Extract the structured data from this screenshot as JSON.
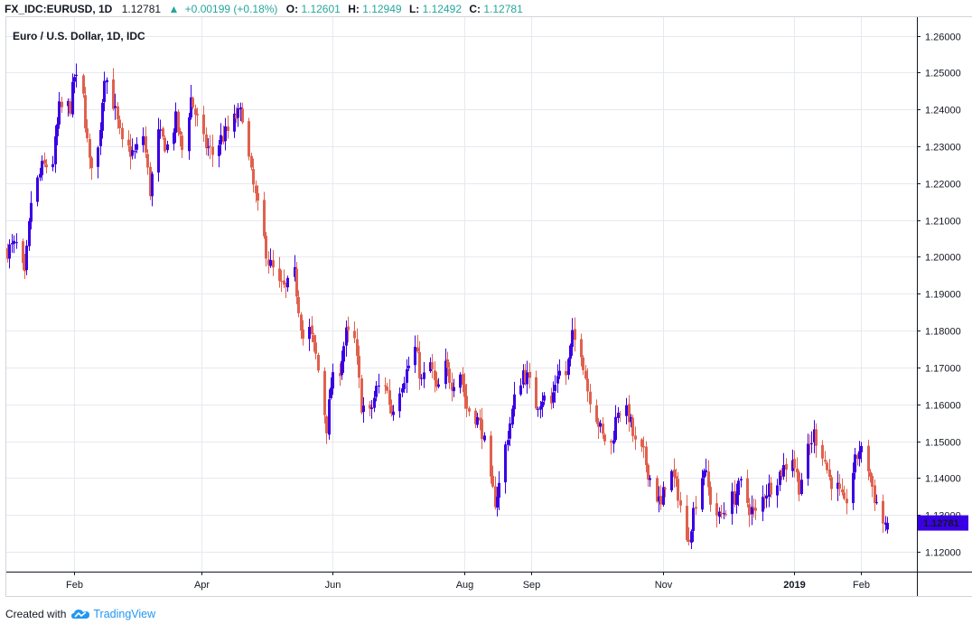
{
  "header": {
    "symbol": "FX_IDC:EURUSD, 1D",
    "last": "1.12781",
    "arrow": "▲",
    "change": "+0.00199 (+0.18%)",
    "o_label": "O:",
    "o": "1.12601",
    "h_label": "H:",
    "h": "1.12949",
    "l_label": "L:",
    "l": "1.12492",
    "c_label": "C:",
    "c": "1.12781"
  },
  "footer": {
    "created_with": "Created with",
    "brand": "TradingView",
    "brand_icon": "tradingview-cloud-icon"
  },
  "colors": {
    "up": "#3a00e5",
    "down": "#e0614e",
    "change_up": "#26a69a",
    "grid": "#e6e9ee",
    "price_badge": "#3a00e5"
  },
  "chart_data": {
    "type": "candlestick",
    "title": "Euro / U.S. Dollar, 1D, IDC",
    "last_price_label": "1.12781",
    "grid": true,
    "x_ticks": [
      {
        "date": "2018-02-01",
        "label": "Feb",
        "bold": false
      },
      {
        "date": "2018-04-01",
        "label": "Apr",
        "bold": false
      },
      {
        "date": "2018-06-01",
        "label": "Jun",
        "bold": false
      },
      {
        "date": "2018-08-01",
        "label": "Aug",
        "bold": false
      },
      {
        "date": "2018-09-01",
        "label": "Sep",
        "bold": false
      },
      {
        "date": "2018-11-01",
        "label": "Nov",
        "bold": false
      },
      {
        "date": "2019-01-01",
        "label": "2019",
        "bold": true
      },
      {
        "date": "2019-02-01",
        "label": "Feb",
        "bold": false
      }
    ],
    "y_ticks": [
      "1.26000",
      "1.25000",
      "1.24000",
      "1.23000",
      "1.22000",
      "1.21000",
      "1.20000",
      "1.19000",
      "1.18000",
      "1.17000",
      "1.16000",
      "1.15000",
      "1.14000",
      "1.13000",
      "1.12000"
    ],
    "x_range": [
      "2018-01-01",
      "2019-02-13"
    ],
    "y_range": [
      1.1146,
      1.2653
    ],
    "anchors": [
      [
        "2018-01-01",
        1.202
      ],
      [
        "2018-01-05",
        1.203
      ],
      [
        "2018-01-09",
        1.194
      ],
      [
        "2018-01-12",
        1.215
      ],
      [
        "2018-01-17",
        1.224
      ],
      [
        "2018-01-22",
        1.226
      ],
      [
        "2018-01-25",
        1.24
      ],
      [
        "2018-01-30",
        1.241
      ],
      [
        "2018-02-01",
        1.249
      ],
      [
        "2018-02-05",
        1.243
      ],
      [
        "2018-02-08",
        1.225
      ],
      [
        "2018-02-12",
        1.229
      ],
      [
        "2018-02-15",
        1.25
      ],
      [
        "2018-02-19",
        1.242
      ],
      [
        "2018-02-23",
        1.23
      ],
      [
        "2018-03-01",
        1.228
      ],
      [
        "2018-03-05",
        1.233
      ],
      [
        "2018-03-08",
        1.218
      ],
      [
        "2018-03-12",
        1.233
      ],
      [
        "2018-03-16",
        1.23
      ],
      [
        "2018-03-20",
        1.237
      ],
      [
        "2018-03-23",
        1.229
      ],
      [
        "2018-03-27",
        1.243
      ],
      [
        "2018-04-02",
        1.231
      ],
      [
        "2018-04-06",
        1.228
      ],
      [
        "2018-04-10",
        1.232
      ],
      [
        "2018-04-13",
        1.234
      ],
      [
        "2018-04-17",
        1.238
      ],
      [
        "2018-04-20",
        1.239
      ],
      [
        "2018-04-24",
        1.222
      ],
      [
        "2018-04-27",
        1.213
      ],
      [
        "2018-05-02",
        1.199
      ],
      [
        "2018-05-07",
        1.192
      ],
      [
        "2018-05-10",
        1.191
      ],
      [
        "2018-05-14",
        1.195
      ],
      [
        "2018-05-18",
        1.178
      ],
      [
        "2018-05-21",
        1.18
      ],
      [
        "2018-05-24",
        1.173
      ],
      [
        "2018-05-29",
        1.154
      ],
      [
        "2018-05-31",
        1.165
      ],
      [
        "2018-06-04",
        1.17
      ],
      [
        "2018-06-07",
        1.179
      ],
      [
        "2018-06-11",
        1.177
      ],
      [
        "2018-06-14",
        1.16
      ],
      [
        "2018-06-18",
        1.157
      ],
      [
        "2018-06-21",
        1.164
      ],
      [
        "2018-06-25",
        1.166
      ],
      [
        "2018-06-28",
        1.158
      ],
      [
        "2018-07-02",
        1.165
      ],
      [
        "2018-07-05",
        1.169
      ],
      [
        "2018-07-09",
        1.175
      ],
      [
        "2018-07-12",
        1.166
      ],
      [
        "2018-07-16",
        1.171
      ],
      [
        "2018-07-19",
        1.163
      ],
      [
        "2018-07-23",
        1.17
      ],
      [
        "2018-07-26",
        1.166
      ],
      [
        "2018-07-30",
        1.169
      ],
      [
        "2018-08-02",
        1.159
      ],
      [
        "2018-08-06",
        1.157
      ],
      [
        "2018-08-09",
        1.153
      ],
      [
        "2018-08-13",
        1.138
      ],
      [
        "2018-08-15",
        1.134
      ],
      [
        "2018-08-17",
        1.138
      ],
      [
        "2018-08-21",
        1.152
      ],
      [
        "2018-08-24",
        1.161
      ],
      [
        "2018-08-28",
        1.169
      ],
      [
        "2018-08-30",
        1.167
      ],
      [
        "2018-09-03",
        1.16
      ],
      [
        "2018-09-06",
        1.162
      ],
      [
        "2018-09-10",
        1.16
      ],
      [
        "2018-09-13",
        1.169
      ],
      [
        "2018-09-17",
        1.168
      ],
      [
        "2018-09-20",
        1.178
      ],
      [
        "2018-09-24",
        1.175
      ],
      [
        "2018-09-27",
        1.164
      ],
      [
        "2018-10-01",
        1.157
      ],
      [
        "2018-10-04",
        1.151
      ],
      [
        "2018-10-08",
        1.149
      ],
      [
        "2018-10-11",
        1.159
      ],
      [
        "2018-10-16",
        1.157
      ],
      [
        "2018-10-19",
        1.149
      ],
      [
        "2018-10-23",
        1.146
      ],
      [
        "2018-10-26",
        1.14
      ],
      [
        "2018-10-31",
        1.132
      ],
      [
        "2018-11-02",
        1.139
      ],
      [
        "2018-11-05",
        1.141
      ],
      [
        "2018-11-08",
        1.136
      ],
      [
        "2018-11-12",
        1.122
      ],
      [
        "2018-11-14",
        1.128
      ],
      [
        "2018-11-16",
        1.134
      ],
      [
        "2018-11-20",
        1.143
      ],
      [
        "2018-11-23",
        1.134
      ],
      [
        "2018-11-27",
        1.129
      ],
      [
        "2018-11-30",
        1.132
      ],
      [
        "2018-12-04",
        1.135
      ],
      [
        "2018-12-07",
        1.138
      ],
      [
        "2018-12-11",
        1.132
      ],
      [
        "2018-12-14",
        1.13
      ],
      [
        "2018-12-18",
        1.136
      ],
      [
        "2018-12-21",
        1.138
      ],
      [
        "2018-12-26",
        1.142
      ],
      [
        "2018-12-31",
        1.146
      ],
      [
        "2019-01-03",
        1.138
      ],
      [
        "2019-01-07",
        1.147
      ],
      [
        "2019-01-10",
        1.152
      ],
      [
        "2019-01-14",
        1.147
      ],
      [
        "2019-01-17",
        1.14
      ],
      [
        "2019-01-21",
        1.137
      ],
      [
        "2019-01-24",
        1.132
      ],
      [
        "2019-01-28",
        1.142
      ],
      [
        "2019-01-31",
        1.148
      ],
      [
        "2019-02-04",
        1.143
      ],
      [
        "2019-02-07",
        1.135
      ],
      [
        "2019-02-11",
        1.128
      ],
      [
        "2019-02-13",
        1.1278
      ]
    ]
  }
}
